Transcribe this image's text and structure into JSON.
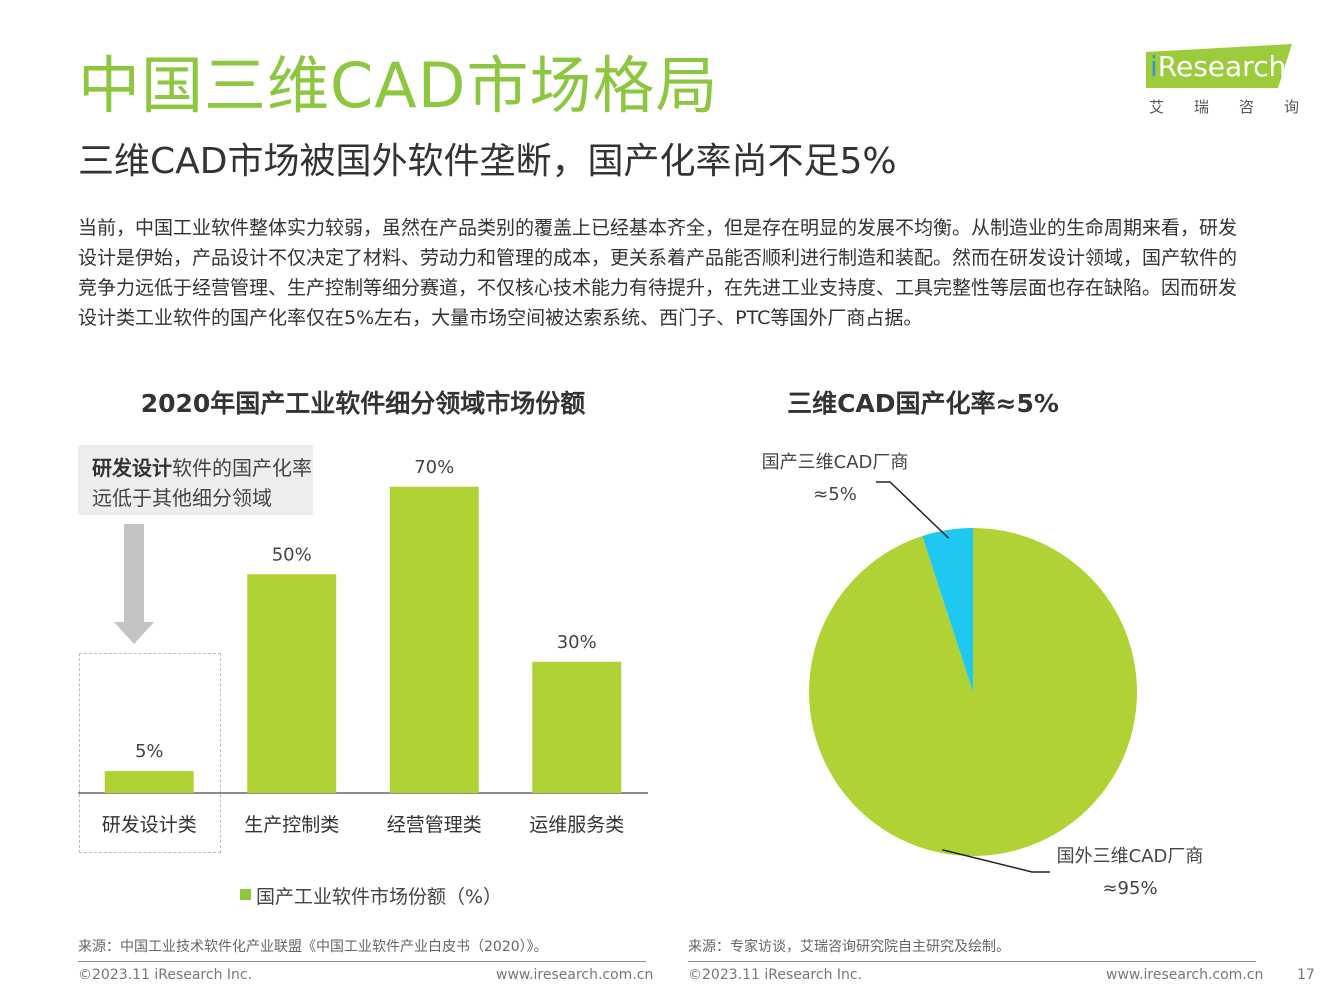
{
  "header": {
    "title": "中国三维CAD市场格局",
    "subtitle": "三维CAD市场被国外软件垄断，国产化率尚不足5%",
    "body": "当前，中国工业软件整体实力较弱，虽然在产品类别的覆盖上已经基本齐全，但是存在明显的发展不均衡。从制造业的生命周期来看，研发设计是伊始，产品设计不仅决定了材料、劳动力和管理的成本，更关系着产品能否顺利进行制造和装配。然而在研发设计领域，国产软件的竞争力远低于经营管理、生产控制等细分赛道，不仅核心技术能力有待提升，在先进工业支持度、工具完整性等层面也存在缺陷。因而研发设计类工业软件的国产化率仅在5%左右，大量市场空间被达索系统、西门子、PTC等国外厂商占据。"
  },
  "logo": {
    "i": "i",
    "rest": "Research",
    "cn": [
      "艾",
      "瑞",
      "咨",
      "询"
    ]
  },
  "callout": {
    "bold": "研发设计",
    "rest": "软件的国产化率远低于其他细分领域"
  },
  "colors": {
    "green": "#b0d235",
    "cyan": "#1ec8f0",
    "accent": "#8dc63f"
  },
  "chart_data": [
    {
      "type": "bar",
      "title": "2020年国产工业软件细分领域市场份额",
      "categories": [
        "研发设计类",
        "生产控制类",
        "经营管理类",
        "运维服务类"
      ],
      "series": [
        {
          "name": "国产工业软件市场份额（%）",
          "values": [
            5,
            50,
            70,
            30
          ]
        }
      ],
      "data_labels": [
        "5%",
        "50%",
        "70%",
        "30%"
      ],
      "ylim": [
        0,
        80
      ]
    },
    {
      "type": "pie",
      "title": "三维CAD国产化率≈5%",
      "slices": [
        {
          "label": "国产三维CAD厂商",
          "value_label": "≈5%",
          "value": 5,
          "color": "#1ec8f0"
        },
        {
          "label": "国外三维CAD厂商",
          "value_label": "≈95%",
          "value": 95,
          "color": "#b0d235"
        }
      ]
    }
  ],
  "footer": {
    "source_left": "来源：中国工业技术软件化产业联盟《中国工业软件产业白皮书（2020）》。",
    "source_right": "来源：专家访谈，艾瑞咨询研究院自主研究及绘制。",
    "copyright": "©2023.11 iResearch Inc.",
    "url": "www.iresearch.com.cn",
    "page": "17"
  }
}
